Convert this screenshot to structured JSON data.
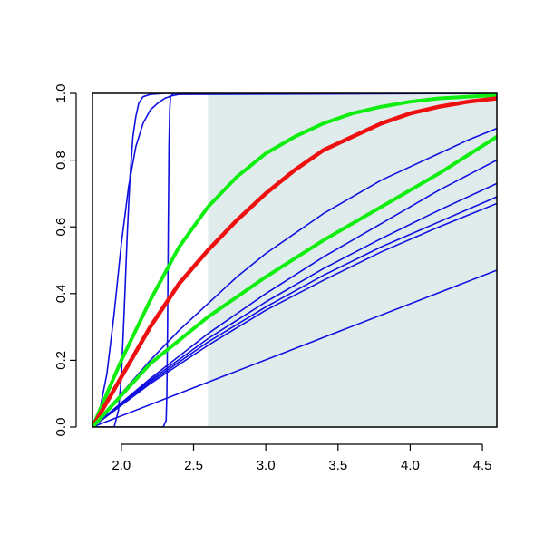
{
  "chart_data": {
    "type": "line",
    "title": "",
    "xlabel": "",
    "ylabel": "",
    "xlim": [
      1.8,
      4.6
    ],
    "ylim": [
      0.0,
      1.0
    ],
    "x_ticks": [
      2.0,
      2.5,
      3.0,
      3.5,
      4.0,
      4.5
    ],
    "y_ticks": [
      0.0,
      0.2,
      0.4,
      0.6,
      0.8,
      1.0
    ],
    "x_tick_labels": [
      "2.0",
      "2.5",
      "3.0",
      "3.5",
      "4.0",
      "4.5"
    ],
    "y_tick_labels": [
      "0.0",
      "0.2",
      "0.4",
      "0.6",
      "0.8",
      "1.0"
    ],
    "grid": false,
    "legend": "none",
    "shaded_region": {
      "x": [
        2.6,
        4.6
      ],
      "y": [
        0.0,
        1.0
      ],
      "color": "#e0ecec"
    },
    "colors": {
      "blue": "#1010e0",
      "green": "#10ee10",
      "red": "#ee1010",
      "axis": "#000000"
    },
    "series": [
      {
        "color": "#1010e0",
        "width": 1.6,
        "x": [
          1.8,
          1.85,
          1.9,
          1.95,
          2.0,
          2.05,
          2.1,
          2.15,
          2.2,
          2.25,
          2.3,
          2.35,
          2.4,
          4.6
        ],
        "y": [
          0.0,
          0.05,
          0.16,
          0.34,
          0.55,
          0.72,
          0.84,
          0.91,
          0.95,
          0.97,
          0.985,
          0.993,
          0.997,
          1.0
        ]
      },
      {
        "color": "#1010e0",
        "width": 1.6,
        "x": [
          1.8,
          1.95,
          1.98,
          2.0,
          2.02,
          2.04,
          2.06,
          2.08,
          2.1,
          2.12,
          2.15,
          2.2,
          2.3,
          2.4,
          4.6
        ],
        "y": [
          0.0,
          0.0,
          0.05,
          0.15,
          0.35,
          0.57,
          0.75,
          0.87,
          0.93,
          0.97,
          0.99,
          0.997,
          1.0,
          1.0,
          1.0
        ]
      },
      {
        "color": "#1010e0",
        "width": 1.6,
        "x": [
          1.8,
          2.29,
          2.31,
          2.315,
          2.32,
          2.325,
          2.33,
          2.335,
          2.34,
          2.36,
          2.4,
          4.6
        ],
        "y": [
          0.0,
          0.0,
          0.02,
          0.1,
          0.3,
          0.6,
          0.85,
          0.95,
          0.99,
          1.0,
          1.0,
          1.0
        ]
      },
      {
        "color": "#1010e0",
        "width": 1.6,
        "x": [
          1.8,
          2.0,
          2.2,
          2.4,
          2.6,
          2.8,
          3.0,
          3.2,
          3.4,
          3.6,
          3.8,
          4.0,
          4.2,
          4.4,
          4.6
        ],
        "y": [
          0.0,
          0.1,
          0.2,
          0.29,
          0.37,
          0.45,
          0.52,
          0.58,
          0.64,
          0.69,
          0.74,
          0.78,
          0.82,
          0.86,
          0.895
        ]
      },
      {
        "color": "#1010e0",
        "width": 1.6,
        "x": [
          1.8,
          2.2,
          2.6,
          3.0,
          3.4,
          3.8,
          4.2,
          4.6
        ],
        "y": [
          0.0,
          0.145,
          0.28,
          0.4,
          0.51,
          0.61,
          0.71,
          0.8
        ]
      },
      {
        "color": "#1010e0",
        "width": 1.6,
        "x": [
          1.8,
          2.2,
          2.6,
          3.0,
          3.4,
          3.8,
          4.2,
          4.6
        ],
        "y": [
          0.0,
          0.14,
          0.265,
          0.375,
          0.475,
          0.565,
          0.65,
          0.73
        ]
      },
      {
        "color": "#1010e0",
        "width": 1.6,
        "x": [
          1.8,
          2.2,
          2.6,
          3.0,
          3.4,
          3.8,
          4.2,
          4.6
        ],
        "y": [
          0.0,
          0.135,
          0.255,
          0.36,
          0.455,
          0.54,
          0.615,
          0.69
        ]
      },
      {
        "color": "#1010e0",
        "width": 1.6,
        "x": [
          1.8,
          2.2,
          2.6,
          3.0,
          3.4,
          3.8,
          4.2,
          4.6
        ],
        "y": [
          0.0,
          0.13,
          0.245,
          0.35,
          0.44,
          0.525,
          0.6,
          0.67
        ]
      },
      {
        "color": "#1010e0",
        "width": 1.6,
        "x": [
          1.8,
          4.6
        ],
        "y": [
          0.0,
          0.47
        ]
      },
      {
        "color": "#10ee10",
        "width": 4.0,
        "x": [
          1.8,
          2.0,
          2.2,
          2.4,
          2.6,
          2.8,
          3.0,
          3.2,
          3.4,
          3.6,
          3.8,
          4.0,
          4.2,
          4.4,
          4.6
        ],
        "y": [
          0.0,
          0.2,
          0.38,
          0.54,
          0.66,
          0.75,
          0.82,
          0.87,
          0.91,
          0.94,
          0.96,
          0.975,
          0.985,
          0.99,
          0.995
        ]
      },
      {
        "color": "#ee1010",
        "width": 4.5,
        "x": [
          1.8,
          2.0,
          2.2,
          2.4,
          2.6,
          2.8,
          3.0,
          3.2,
          3.4,
          3.6,
          3.8,
          4.0,
          4.2,
          4.4,
          4.6
        ],
        "y": [
          0.0,
          0.15,
          0.3,
          0.43,
          0.53,
          0.62,
          0.7,
          0.77,
          0.83,
          0.87,
          0.91,
          0.94,
          0.96,
          0.975,
          0.985
        ]
      },
      {
        "color": "#10ee10",
        "width": 4.0,
        "x": [
          1.8,
          2.2,
          2.6,
          3.0,
          3.4,
          3.8,
          4.2,
          4.6
        ],
        "y": [
          0.0,
          0.19,
          0.33,
          0.45,
          0.56,
          0.66,
          0.76,
          0.87
        ]
      }
    ]
  }
}
